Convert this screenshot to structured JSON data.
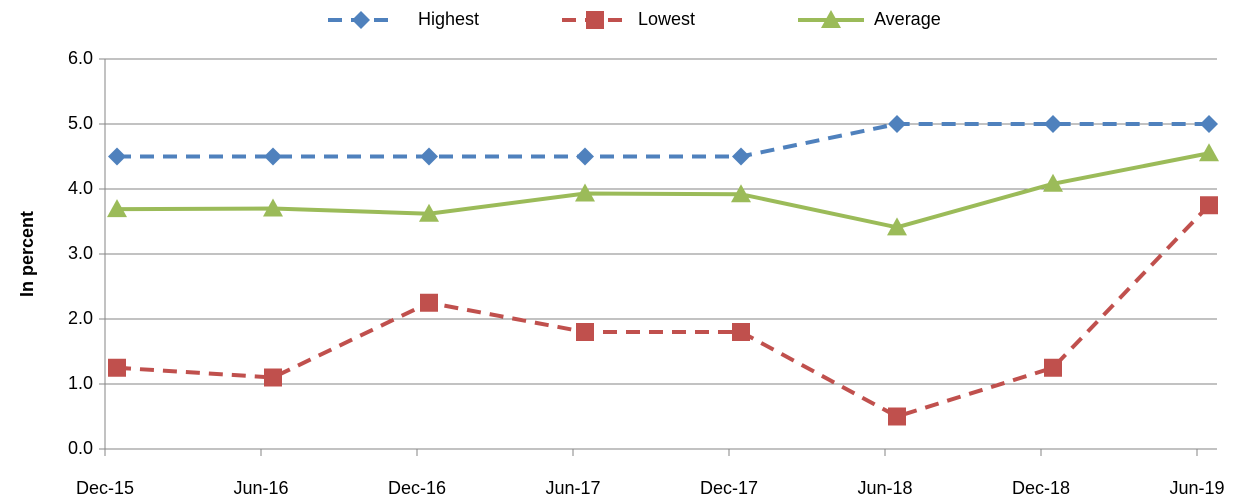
{
  "chart_data": {
    "type": "line",
    "y_label": "In percent",
    "categories": [
      "Dec-15",
      "Jun-16",
      "Dec-16",
      "Jun-17",
      "Dec-17",
      "Jun-18",
      "Dec-18",
      "Jun-19"
    ],
    "series": [
      {
        "name": "Highest",
        "color": "#4f81bd",
        "dashed": true,
        "marker": "diamond",
        "values": [
          4.5,
          4.5,
          4.5,
          4.5,
          4.5,
          5.0,
          5.0,
          5.0
        ]
      },
      {
        "name": "Lowest",
        "color": "#c0504d",
        "dashed": true,
        "marker": "square",
        "values": [
          1.25,
          1.1,
          2.25,
          1.8,
          1.8,
          0.5,
          1.25,
          3.75
        ]
      },
      {
        "name": "Average",
        "color": "#9bbb59",
        "dashed": false,
        "marker": "triangle",
        "values": [
          3.69,
          3.7,
          3.62,
          3.93,
          3.92,
          3.41,
          4.08,
          4.55
        ]
      }
    ],
    "ylim": [
      0,
      6
    ],
    "yticks": [
      {
        "value": 0,
        "label": "0.0"
      },
      {
        "value": 1,
        "label": "1.0"
      },
      {
        "value": 2,
        "label": "2.0"
      },
      {
        "value": 3,
        "label": "3.0"
      },
      {
        "value": 4,
        "label": "4.0"
      },
      {
        "value": 5,
        "label": "5.0"
      },
      {
        "value": 6,
        "label": "6.0"
      }
    ],
    "grid": true,
    "legend": "top"
  }
}
